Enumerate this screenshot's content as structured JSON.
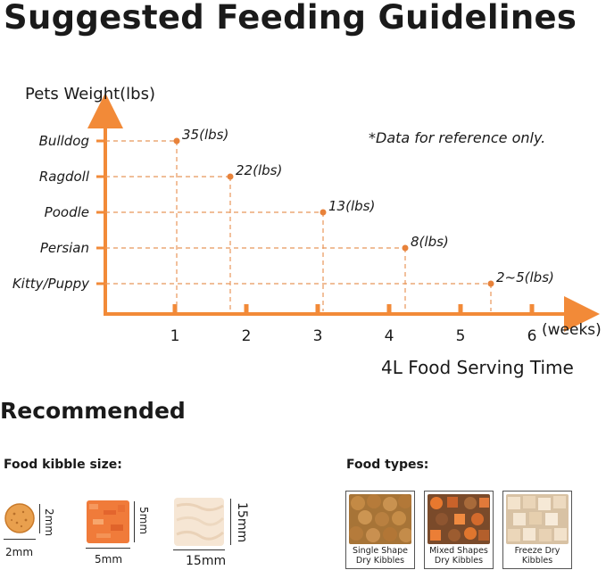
{
  "title": "Suggested Feeding Guidelines",
  "chart_data": {
    "type": "scatter",
    "ylabel": "Pets Weight(lbs)",
    "xlabel": "4L Food Serving Time",
    "x_unit": "(weeks)",
    "note": "*Data for reference only.",
    "x_ticks": [
      "1",
      "2",
      "3",
      "4",
      "5",
      "6"
    ],
    "xlim": [
      0,
      6
    ],
    "categories": [
      "Bulldog",
      "Ragdoll",
      "Poodle",
      "Persian",
      "Kitty/Puppy"
    ],
    "points": [
      {
        "category": "Bulldog",
        "x": 1.0,
        "label": "35(lbs)"
      },
      {
        "category": "Ragdoll",
        "x": 1.75,
        "label": "22(lbs)"
      },
      {
        "category": "Poodle",
        "x": 3.05,
        "label": "13(lbs)"
      },
      {
        "category": "Persian",
        "x": 4.2,
        "label": "8(lbs)"
      },
      {
        "category": "Kitty/Puppy",
        "x": 5.4,
        "label": "2~5(lbs)"
      }
    ],
    "colors": {
      "axis": "#F28A38",
      "point": "#E8823A",
      "dash": "#E8965A"
    }
  },
  "recommended": {
    "title": "Recommended",
    "kibble_size_label": "Food kibble size:",
    "food_types_label": "Food types:",
    "sizes": [
      {
        "name": "round-kibble",
        "width": "2mm",
        "height": "2mm"
      },
      {
        "name": "salmon-kibble",
        "width": "5mm",
        "height": "5mm"
      },
      {
        "name": "freeze-dry-kibble",
        "width": "15mm",
        "height": "15mm"
      }
    ],
    "food_types": [
      {
        "line1": "Single Shape",
        "line2": "Dry Kibbles"
      },
      {
        "line1": "Mixed Shapes",
        "line2": "Dry Kibbles"
      },
      {
        "line1": "Freeze Dry",
        "line2": "Kibbles"
      }
    ]
  }
}
